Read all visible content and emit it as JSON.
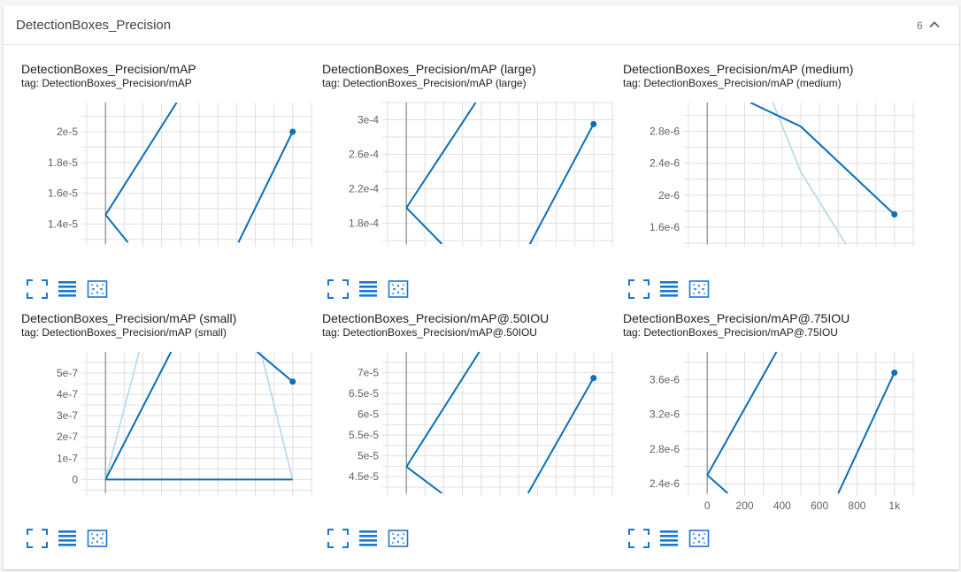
{
  "panel": {
    "title": "DetectionBoxes_Precision",
    "count": "6",
    "collapse_icon": "chevron-up-icon"
  },
  "theme": {
    "series_color": "#0b6fb8",
    "series_faint_color": "#b5d7ea",
    "grid_color": "#e0e0e0",
    "axis_color": "#9e9e9e",
    "toolbar_icon_color": "#1976d2"
  },
  "toolbar_icons": [
    "fullscreen-icon",
    "list-icon",
    "fit-domain-icon"
  ],
  "cards": [
    {
      "title": "DetectionBoxes_Precision/mAP",
      "tag_prefix": "tag: ",
      "tag": "DetectionBoxes_Precision/mAP"
    },
    {
      "title": "DetectionBoxes_Precision/mAP (large)",
      "tag_prefix": "tag: ",
      "tag": "DetectionBoxes_Precision/mAP (large)"
    },
    {
      "title": "DetectionBoxes_Precision/mAP (medium)",
      "tag_prefix": "tag: ",
      "tag": "DetectionBoxes_Precision/mAP (medium)"
    },
    {
      "title": "DetectionBoxes_Precision/mAP (small)",
      "tag_prefix": "tag: ",
      "tag": "DetectionBoxes_Precision/mAP (small)"
    },
    {
      "title": "DetectionBoxes_Precision/mAP@.50IOU",
      "tag_prefix": "tag: ",
      "tag": "DetectionBoxes_Precision/mAP@.50IOU"
    },
    {
      "title": "DetectionBoxes_Precision/mAP@.75IOU",
      "tag_prefix": "tag: ",
      "tag": "DetectionBoxes_Precision/mAP@.75IOU"
    }
  ],
  "chart_data": [
    {
      "type": "line",
      "title": "DetectionBoxes_Precision/mAP",
      "xlim": [
        -110,
        1110
      ],
      "ylim": [
        1.27e-05,
        2.19e-05
      ],
      "ytick_values": [
        1.4e-05,
        1.6e-05,
        1.8e-05,
        2e-05
      ],
      "yticks": [
        "1.4e-5",
        "1.6e-5",
        "1.8e-5",
        "2e-5"
      ],
      "xtick_values": [],
      "xticks": [],
      "series": [
        {
          "style": "smoothed",
          "x": [
            0,
            120
          ],
          "y": [
            1.46e-05,
            1.28e-05
          ]
        },
        {
          "style": "smoothed",
          "x": [
            0,
            380
          ],
          "y": [
            1.46e-05,
            2.19e-05
          ]
        },
        {
          "style": "smoothed",
          "x": [
            710,
            1000
          ],
          "y": [
            1.28e-05,
            2e-05
          ],
          "marker": "last"
        }
      ]
    },
    {
      "type": "line",
      "title": "DetectionBoxes_Precision/mAP (large)",
      "xlim": [
        -110,
        1110
      ],
      "ylim": [
        0.000156,
        0.00032
      ],
      "ytick_values": [
        0.00018,
        0.00022,
        0.00026,
        0.0003
      ],
      "yticks": [
        "1.8e-4",
        "2.2e-4",
        "2.6e-4",
        "3e-4"
      ],
      "xtick_values": [],
      "xticks": [],
      "series": [
        {
          "style": "smoothed",
          "x": [
            0,
            190
          ],
          "y": [
            0.000198,
            0.000156
          ]
        },
        {
          "style": "smoothed",
          "x": [
            0,
            370
          ],
          "y": [
            0.000198,
            0.00032
          ]
        },
        {
          "style": "smoothed",
          "x": [
            660,
            1000
          ],
          "y": [
            0.000156,
            0.000295
          ],
          "marker": "last"
        }
      ]
    },
    {
      "type": "line",
      "title": "DetectionBoxes_Precision/mAP (medium)",
      "xlim": [
        -110,
        1110
      ],
      "ylim": [
        1.39e-06,
        3.16e-06
      ],
      "ytick_values": [
        1.6e-06,
        2e-06,
        2.4e-06,
        2.8e-06
      ],
      "yticks": [
        "1.6e-6",
        "2e-6",
        "2.4e-6",
        "2.8e-6"
      ],
      "xtick_values": [],
      "xticks": [],
      "series": [
        {
          "style": "raw",
          "x": [
            350,
            500,
            740
          ],
          "y": [
            3.16e-06,
            2.29e-06,
            1.39e-06
          ]
        },
        {
          "style": "smoothed",
          "x": [
            230,
            500,
            1000
          ],
          "y": [
            3.16e-06,
            2.86e-06,
            1.76e-06
          ],
          "marker": "last"
        }
      ]
    },
    {
      "type": "line",
      "title": "DetectionBoxes_Precision/mAP (small)",
      "xlim": [
        -110,
        1110
      ],
      "ylim": [
        -6.5e-08,
        6e-07
      ],
      "ytick_values": [
        0,
        1e-07,
        2e-07,
        3e-07,
        4e-07,
        5e-07
      ],
      "yticks": [
        "0",
        "1e-7",
        "2e-7",
        "3e-7",
        "4e-7",
        "5e-7"
      ],
      "xtick_values": [],
      "xticks": [],
      "series": [
        {
          "style": "raw",
          "x": [
            0,
            180
          ],
          "y": [
            0,
            6e-07
          ]
        },
        {
          "style": "raw",
          "x": [
            830,
            1000
          ],
          "y": [
            6e-07,
            0
          ]
        },
        {
          "style": "smoothed",
          "x": [
            0,
            1000
          ],
          "y": [
            0,
            0
          ]
        },
        {
          "style": "smoothed",
          "x": [
            0,
            350
          ],
          "y": [
            0,
            6e-07
          ]
        },
        {
          "style": "smoothed",
          "x": [
            810,
            1000
          ],
          "y": [
            6e-07,
            4.6e-07
          ],
          "marker": "last"
        }
      ]
    },
    {
      "type": "line",
      "title": "DetectionBoxes_Precision/mAP@.50IOU",
      "xlim": [
        -110,
        1110
      ],
      "ylim": [
        4.1e-05,
        7.5e-05
      ],
      "ytick_values": [
        4.5e-05,
        5e-05,
        5.5e-05,
        6e-05,
        6.5e-05,
        7e-05
      ],
      "yticks": [
        "4.5e-5",
        "5e-5",
        "5.5e-5",
        "6e-5",
        "6.5e-5",
        "7e-5"
      ],
      "xtick_values": [],
      "xticks": [],
      "series": [
        {
          "style": "smoothed",
          "x": [
            0,
            190
          ],
          "y": [
            4.74e-05,
            4.1e-05
          ]
        },
        {
          "style": "smoothed",
          "x": [
            0,
            390
          ],
          "y": [
            4.74e-05,
            7.5e-05
          ]
        },
        {
          "style": "smoothed",
          "x": [
            650,
            1000
          ],
          "y": [
            4.1e-05,
            6.87e-05
          ],
          "marker": "last"
        }
      ]
    },
    {
      "type": "line",
      "title": "DetectionBoxes_Precision/mAP@.75IOU",
      "xlim": [
        -110,
        1110
      ],
      "ylim": [
        2.29e-06,
        3.92e-06
      ],
      "ytick_values": [
        2.4e-06,
        2.8e-06,
        3.2e-06,
        3.6e-06
      ],
      "yticks": [
        "2.4e-6",
        "2.8e-6",
        "3.2e-6",
        "3.6e-6"
      ],
      "xtick_values": [
        0,
        200,
        400,
        600,
        800,
        1000
      ],
      "xticks": [
        "0",
        "200",
        "400",
        "600",
        "800",
        "1k"
      ],
      "series": [
        {
          "style": "smoothed",
          "x": [
            0,
            110
          ],
          "y": [
            2.5e-06,
            2.29e-06
          ]
        },
        {
          "style": "smoothed",
          "x": [
            0,
            370
          ],
          "y": [
            2.5e-06,
            3.92e-06
          ]
        },
        {
          "style": "smoothed",
          "x": [
            700,
            1000
          ],
          "y": [
            2.29e-06,
            3.68e-06
          ],
          "marker": "last"
        }
      ]
    }
  ]
}
